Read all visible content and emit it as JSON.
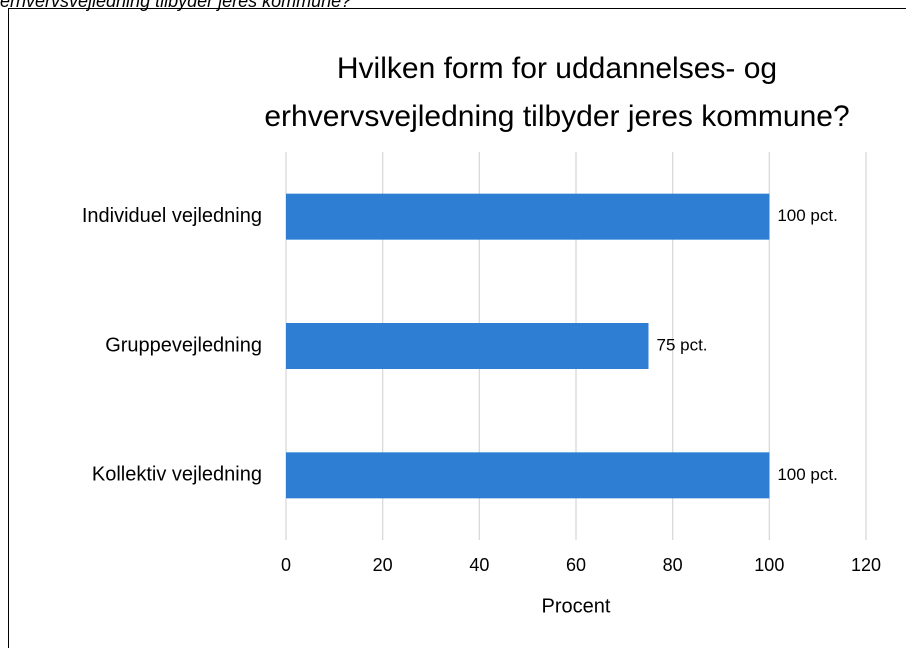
{
  "chart_data": {
    "type": "hbar",
    "caption": "erhvervsvejledning tilbyder jeres kommune?",
    "title": [
      "Hvilken form for uddannelses- og",
      "erhvervsvejledning tilbyder jeres kommune?"
    ],
    "x_label": "Procent",
    "categories": [
      "Individuel vejledning",
      "Gruppevejledning",
      "Kollektiv vejledning"
    ],
    "values": [
      100,
      75,
      100
    ],
    "value_labels": [
      "100 pct.",
      "75 pct.",
      "100 pct."
    ],
    "color": "#2e7fd3",
    "xlim": [
      0,
      120
    ],
    "xticks": [
      0,
      20,
      40,
      60,
      80,
      100,
      120
    ],
    "grid": true
  }
}
